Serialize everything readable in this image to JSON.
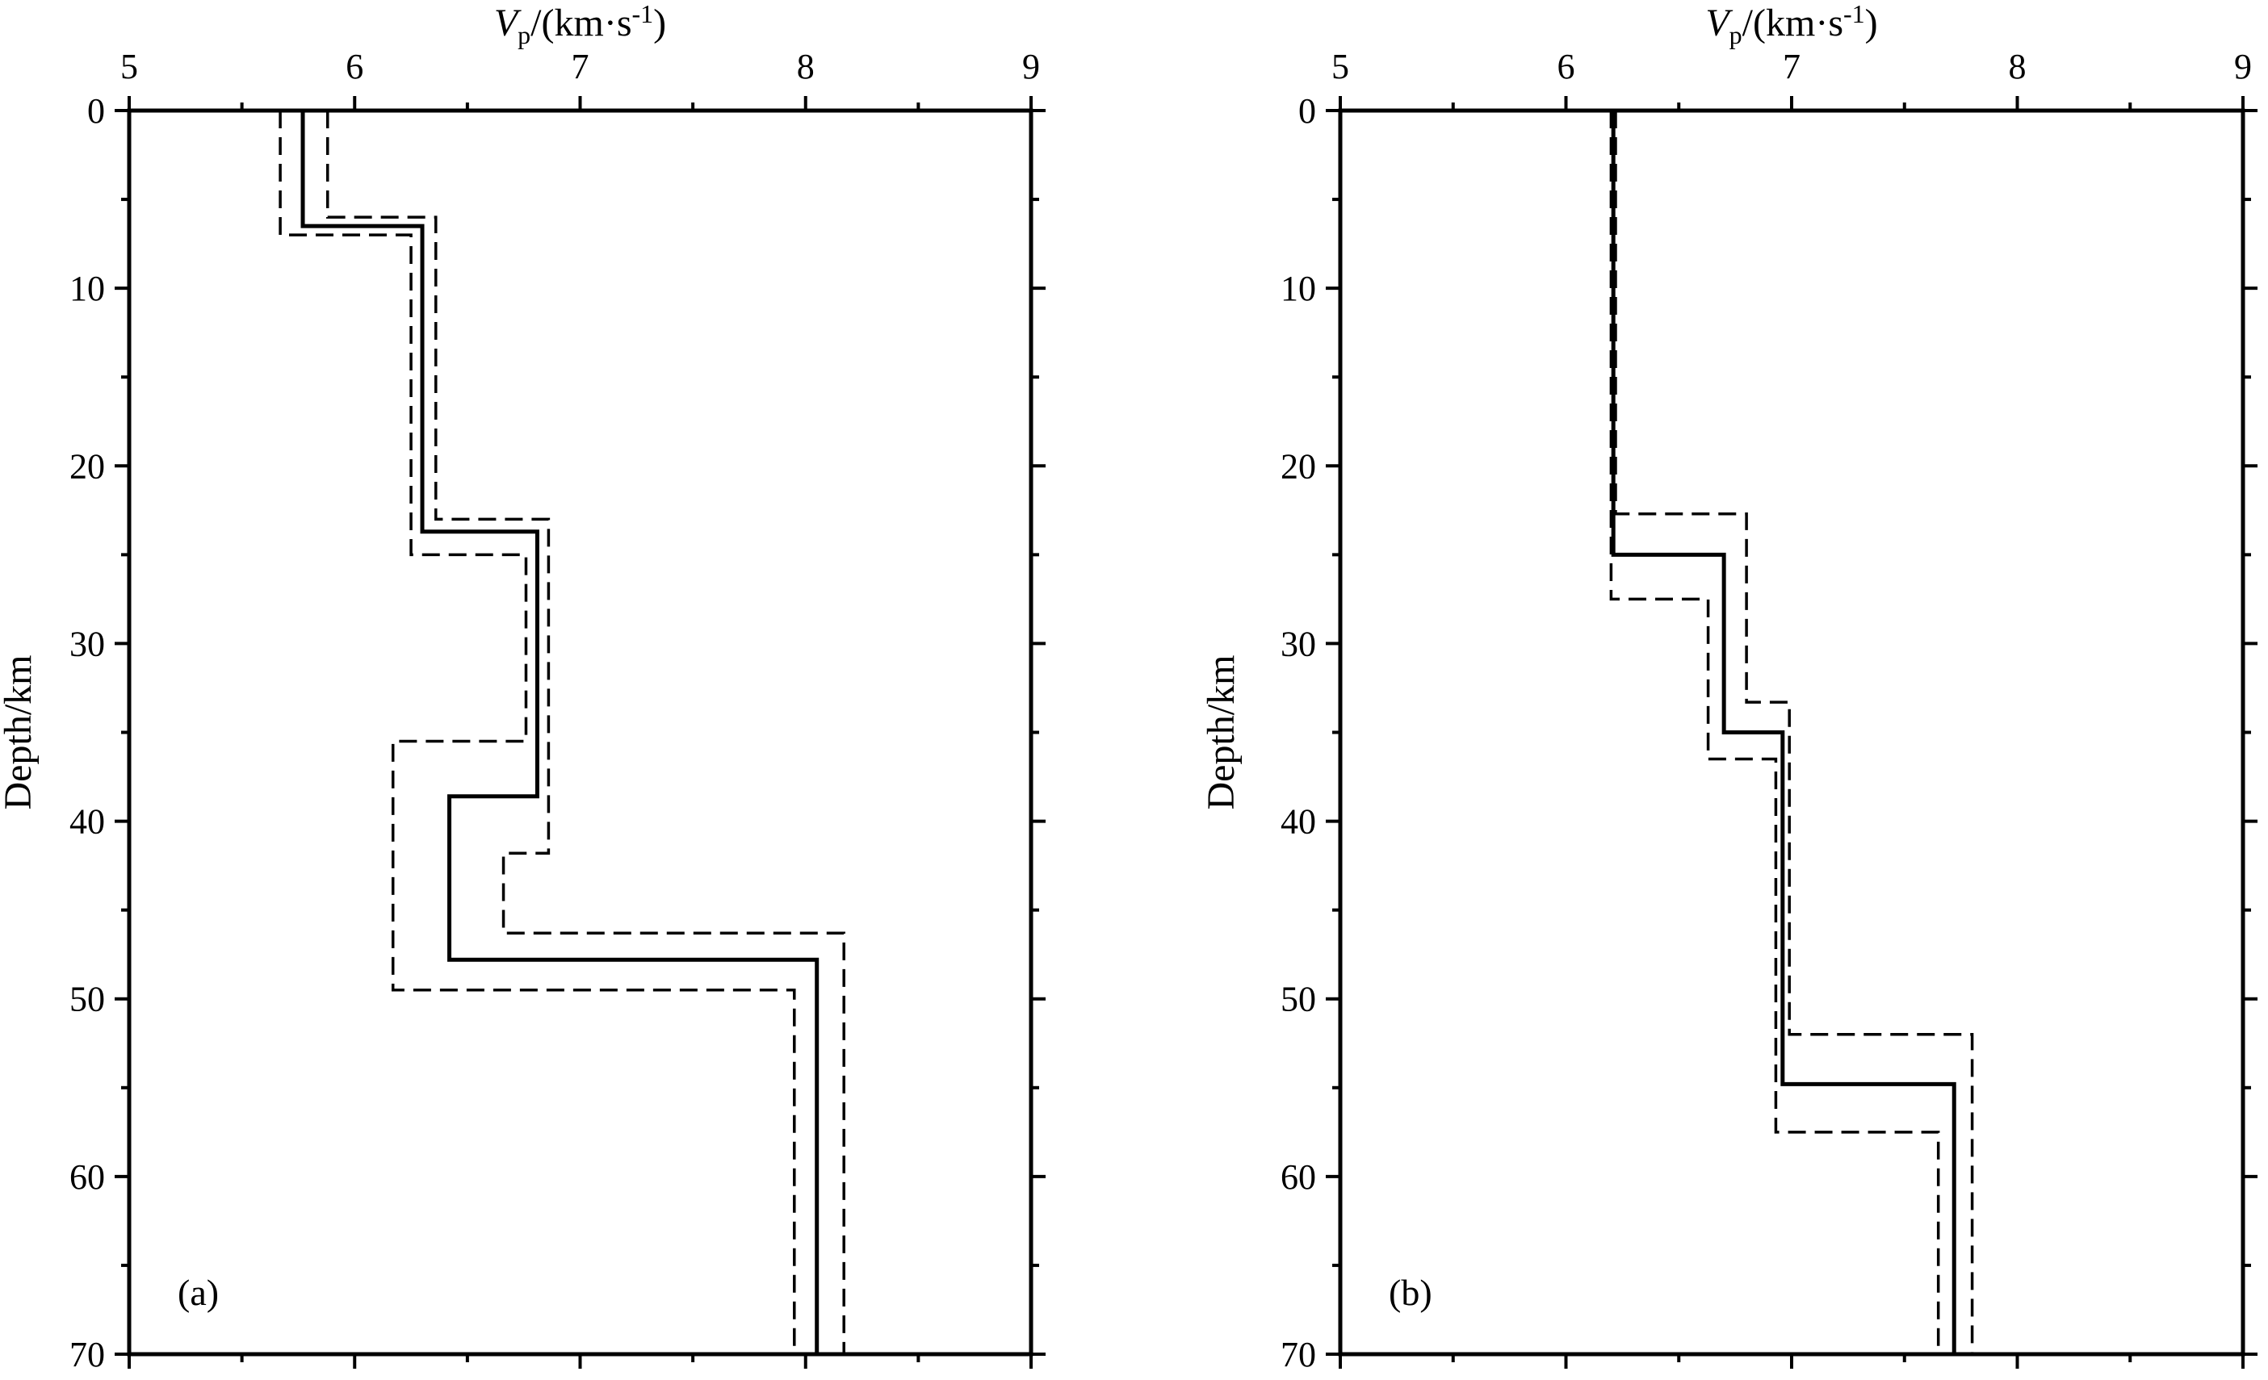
{
  "chart_data": [
    {
      "type": "line",
      "panel_label": "(a)",
      "xlabel": "Vp/(km·s-1)",
      "xlabel_parts": {
        "var": "V",
        "sub": "p",
        "unit_pre": "/(km·s",
        "sup": "-1",
        "unit_post": ")"
      },
      "ylabel": "Depth/km",
      "xlim": [
        5,
        9
      ],
      "ylim": [
        0,
        70
      ],
      "y_inverted": true,
      "x_axis_position": "top",
      "xticks": [
        5,
        6,
        7,
        8,
        9
      ],
      "yticks": [
        0,
        10,
        20,
        30,
        40,
        50,
        60,
        70
      ],
      "grid": false,
      "series": [
        {
          "style": "solid",
          "color": "#000000",
          "velocity": [
            5.77,
            6.3,
            6.81,
            6.42,
            8.05
          ],
          "depth_boundaries": [
            0,
            6.5,
            23.7,
            38.6,
            47.8,
            70
          ]
        },
        {
          "style": "dashed",
          "color": "#000000",
          "velocity": [
            5.67,
            6.25,
            6.76,
            6.17,
            7.95
          ],
          "depth_boundaries": [
            0,
            7,
            25,
            35.5,
            49.5,
            70
          ]
        },
        {
          "style": "dashed",
          "color": "#000000",
          "velocity": [
            5.88,
            6.36,
            6.86,
            6.66,
            8.17
          ],
          "depth_boundaries": [
            0,
            6,
            23,
            41.8,
            46.3,
            70
          ]
        }
      ]
    },
    {
      "type": "line",
      "panel_label": "(b)",
      "xlabel": "Vp/(km·s-1)",
      "xlabel_parts": {
        "var": "V",
        "sub": "p",
        "unit_pre": "/(km·s",
        "sup": "-1",
        "unit_post": ")"
      },
      "ylabel": "Depth/km",
      "xlim": [
        5,
        9
      ],
      "ylim": [
        0,
        70
      ],
      "y_inverted": true,
      "x_axis_position": "top",
      "xticks": [
        5,
        6,
        7,
        8,
        9
      ],
      "yticks": [
        0,
        10,
        20,
        30,
        40,
        50,
        60,
        70
      ],
      "grid": false,
      "series": [
        {
          "style": "solid",
          "color": "#000000",
          "velocity": [
            6.21,
            6.7,
            6.96,
            7.72
          ],
          "depth_boundaries": [
            0,
            25,
            35,
            54.8,
            70
          ]
        },
        {
          "style": "dashed",
          "color": "#000000",
          "velocity": [
            6.2,
            6.63,
            6.93,
            7.65
          ],
          "depth_boundaries": [
            0,
            27.5,
            36.5,
            57.5,
            70
          ]
        },
        {
          "style": "dashed",
          "color": "#000000",
          "velocity": [
            6.22,
            6.8,
            6.99,
            7.8
          ],
          "depth_boundaries": [
            0,
            22.7,
            33.3,
            52,
            70
          ]
        }
      ]
    }
  ]
}
